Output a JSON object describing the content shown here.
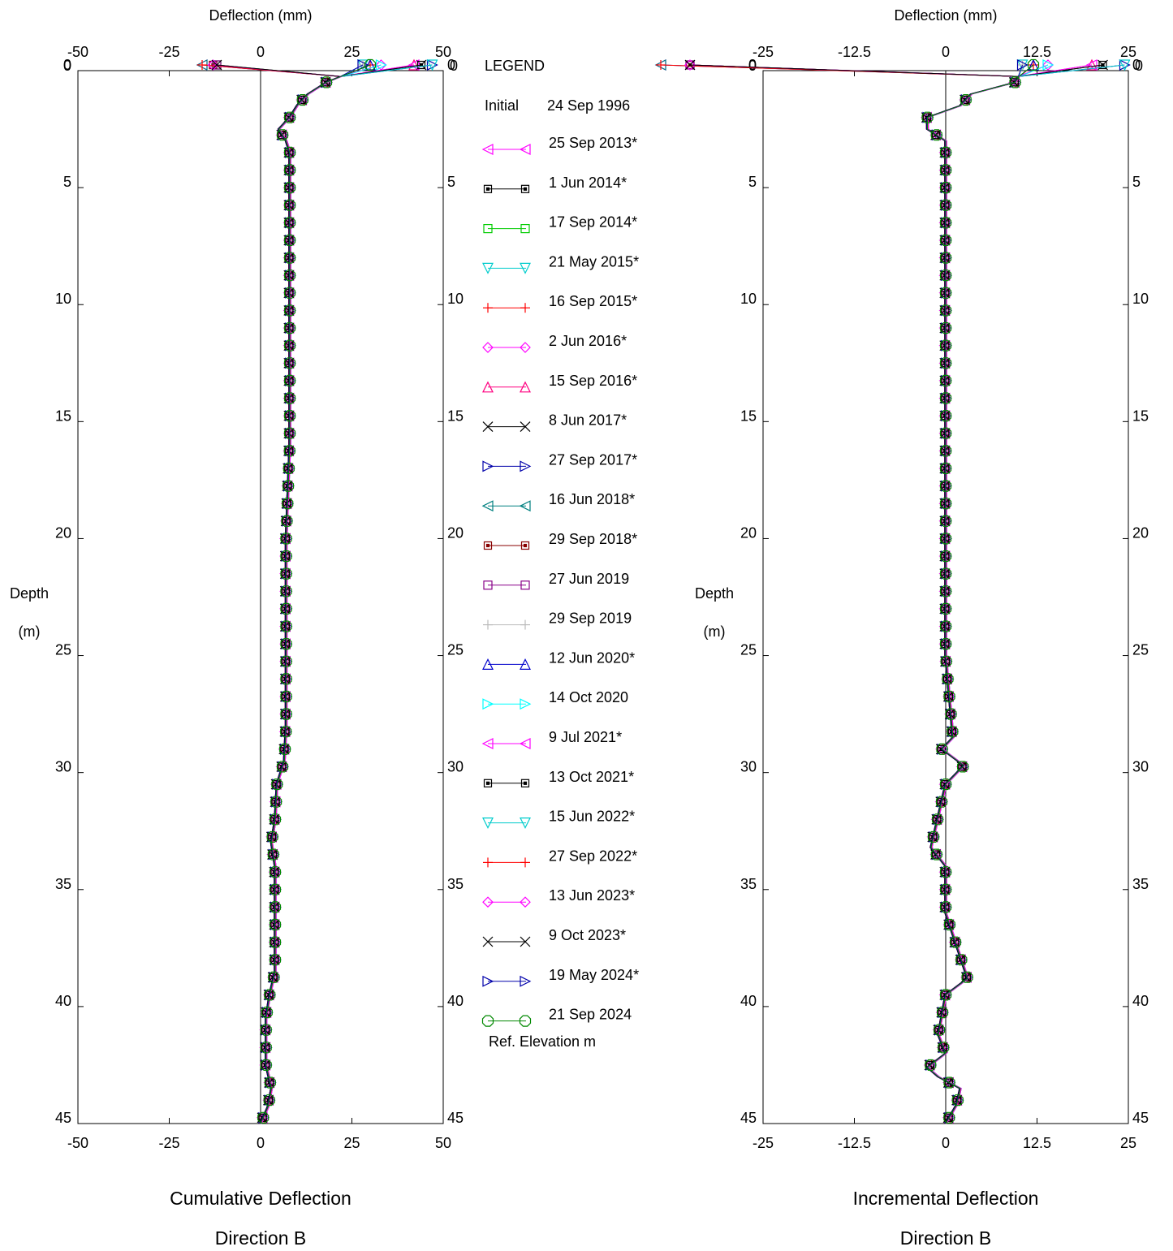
{
  "legend": {
    "title": "LEGEND",
    "initial_label": "Initial",
    "initial_date": "24 Sep 1996",
    "ref_elevation": "Ref. Elevation m",
    "entries": [
      {
        "label": "25 Sep 2013*",
        "color": "#ff00ff",
        "marker": "tri-left"
      },
      {
        "label": "1 Jun 2014*",
        "color": "#000000",
        "marker": "square-dot"
      },
      {
        "label": "17 Sep 2014*",
        "color": "#00cc00",
        "marker": "square-open"
      },
      {
        "label": "21 May 2015*",
        "color": "#00cccc",
        "marker": "tri-down"
      },
      {
        "label": "16 Sep 2015*",
        "color": "#ff0000",
        "marker": "plus"
      },
      {
        "label": "2 Jun 2016*",
        "color": "#ff00ff",
        "marker": "diamond"
      },
      {
        "label": "15 Sep 2016*",
        "color": "#ff0080",
        "marker": "tri-up"
      },
      {
        "label": "8 Jun 2017*",
        "color": "#000000",
        "marker": "x"
      },
      {
        "label": "27 Sep 2017*",
        "color": "#0000aa",
        "marker": "tri-right"
      },
      {
        "label": "16 Jun 2018*",
        "color": "#008080",
        "marker": "tri-left"
      },
      {
        "label": "29 Sep 2018*",
        "color": "#880000",
        "marker": "square-dot"
      },
      {
        "label": "27 Jun 2019",
        "color": "#880088",
        "marker": "square-open"
      },
      {
        "label": "29 Sep 2019",
        "color": "#bbbbbb",
        "marker": "plus"
      },
      {
        "label": "12 Jun 2020*",
        "color": "#0000cc",
        "marker": "tri-up"
      },
      {
        "label": "14 Oct 2020",
        "color": "#00ffff",
        "marker": "tri-right"
      },
      {
        "label": "9 Jul 2021*",
        "color": "#ff00ff",
        "marker": "tri-left"
      },
      {
        "label": "13 Oct 2021*",
        "color": "#000000",
        "marker": "square-dot"
      },
      {
        "label": "15 Jun 2022*",
        "color": "#00cccc",
        "marker": "tri-down"
      },
      {
        "label": "27 Sep 2022*",
        "color": "#ff0000",
        "marker": "plus"
      },
      {
        "label": "13 Jun 2023*",
        "color": "#ff00ff",
        "marker": "diamond"
      },
      {
        "label": "9 Oct 2023*",
        "color": "#000000",
        "marker": "x"
      },
      {
        "label": "19 May 2024*",
        "color": "#0000aa",
        "marker": "tri-right"
      },
      {
        "label": "21 Sep 2024",
        "color": "#008800",
        "marker": "octagon"
      }
    ]
  },
  "chart_data": [
    {
      "type": "line",
      "title": "Cumulative Deflection",
      "subtitle": "Direction  B",
      "xlabel": "Deflection (mm)",
      "ylabel_top": "Depth",
      "ylabel_bottom": "(m)",
      "xlim": [
        -50,
        50
      ],
      "ylim": [
        0,
        45
      ],
      "y_inverted": true,
      "x_ticks": [
        -50,
        -25,
        0,
        25,
        50
      ],
      "x_tick_labels": [
        "-50",
        "-25",
        "0",
        "25",
        "50"
      ],
      "y_ticks": [
        0,
        5,
        10,
        15,
        20,
        25,
        30,
        35,
        40,
        45
      ],
      "y_tick_labels": [
        "0",
        "5",
        "10",
        "15",
        "20",
        "25",
        "30",
        "35",
        "40",
        "45"
      ],
      "top_row": {
        "depth_label": "0",
        "values": [
          -16,
          -13,
          -12,
          28,
          30,
          33,
          42,
          44,
          47
        ]
      },
      "profile": {
        "depth": [
          0.25,
          0.5,
          1.0,
          1.5,
          2.0,
          2.5,
          3.0,
          3.5,
          4.0,
          5.0,
          6.0,
          8.0,
          10.0,
          12.0,
          14.0,
          16.0,
          18.0,
          20.0,
          22.0,
          24.0,
          26.0,
          28.0,
          29.5,
          30.5,
          32.0,
          33.0,
          34.0,
          35.5,
          37.0,
          38.5,
          39.5,
          40.5,
          41.5,
          42.5,
          43.5,
          44.3,
          45.0
        ],
        "deflection": [
          22,
          18,
          13,
          10,
          8,
          5,
          7,
          8,
          8,
          8,
          8,
          8,
          8,
          8,
          8,
          8,
          7.5,
          7,
          7,
          7,
          7,
          7,
          6.5,
          4.5,
          4,
          3,
          4,
          4,
          4,
          4,
          2.5,
          1.5,
          1.5,
          1.5,
          3,
          2,
          0
        ]
      }
    },
    {
      "type": "line",
      "title": "Incremental Deflection",
      "subtitle": "Direction  B",
      "xlabel": "Deflection (mm)",
      "ylabel_top": "Depth",
      "ylabel_bottom": "(m)",
      "xlim": [
        -25,
        25
      ],
      "ylim": [
        0,
        45
      ],
      "y_inverted": true,
      "x_ticks": [
        -25,
        -12.5,
        0,
        12.5,
        25
      ],
      "x_tick_labels": [
        "-25",
        "-12.5",
        "0",
        "12.5",
        "25"
      ],
      "y_ticks": [
        0,
        5,
        10,
        15,
        20,
        25,
        30,
        35,
        40,
        45
      ],
      "y_tick_labels": [
        "0",
        "5",
        "10",
        "15",
        "20",
        "25",
        "30",
        "35",
        "40",
        "45"
      ],
      "top_row": {
        "depth_label": "0",
        "values": [
          -39,
          -35,
          -35,
          10.5,
          12,
          14,
          20,
          21.5,
          24.5
        ]
      },
      "profile": {
        "depth": [
          0.25,
          0.5,
          1.0,
          1.5,
          2.0,
          2.5,
          3.0,
          5.0,
          10.0,
          15.0,
          20.0,
          25.0,
          28.5,
          29.0,
          29.7,
          30.5,
          33.2,
          34.0,
          36.0,
          38.8,
          39.5,
          41.2,
          42.0,
          42.6,
          43.0,
          43.5,
          44.2,
          45.0
        ],
        "deflection": [
          10,
          9.5,
          3.5,
          2,
          -2.5,
          -2.5,
          0,
          0,
          0,
          0,
          0,
          0,
          1,
          -0.5,
          2.5,
          0,
          -2,
          0,
          0,
          3,
          0,
          -1,
          0,
          -2.5,
          -1,
          2,
          1.5,
          0
        ]
      }
    }
  ]
}
